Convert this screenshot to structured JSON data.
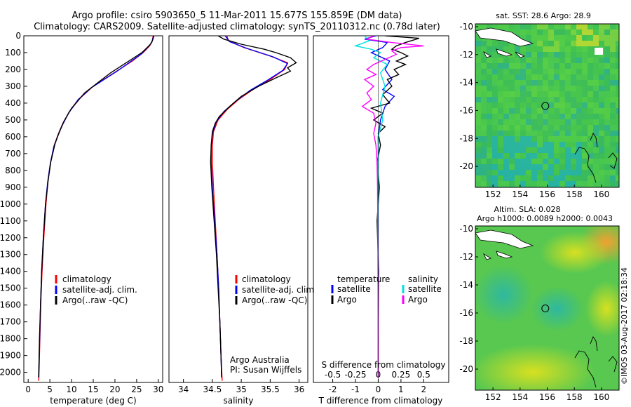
{
  "title": {
    "line1": "Argo profile: csiro 5903650_5 11-Mar-2011 15.677S 155.859E (DM data)",
    "line2": "Climatology: CARS2009. Satellite-adjusted climatology: synTS_20110312.nc (0.78d later)"
  },
  "colors": {
    "clim": "#ff0000",
    "sat": "#0000ff",
    "argo": "#000000",
    "sat_s": "#00e0e0",
    "argo_s": "#ff00ff"
  },
  "chart_data": [
    {
      "type": "line",
      "id": "temperature",
      "xlabel": "temperature (deg C)",
      "ylabel": "",
      "xlim": [
        -1,
        31
      ],
      "ylim": [
        2060,
        0
      ],
      "xticks": [
        0,
        5,
        10,
        15,
        20,
        25,
        30
      ],
      "yticks": [
        0,
        100,
        200,
        300,
        400,
        500,
        600,
        700,
        800,
        900,
        1000,
        1100,
        1200,
        1300,
        1400,
        1500,
        1600,
        1700,
        1800,
        1900,
        2000
      ],
      "legend": [
        "climatology",
        "satellite-adj. clim.",
        "Argo(..raw -QC)"
      ],
      "series": [
        {
          "name": "climatology",
          "color": "clim",
          "points": [
            [
              28.8,
              0
            ],
            [
              28.6,
              30
            ],
            [
              28,
              60
            ],
            [
              26.5,
              100
            ],
            [
              24,
              150
            ],
            [
              21,
              200
            ],
            [
              18,
              250
            ],
            [
              15,
              300
            ],
            [
              12,
              370
            ],
            [
              9.5,
              450
            ],
            [
              8,
              520
            ],
            [
              7,
              580
            ],
            [
              6,
              650
            ],
            [
              5.2,
              750
            ],
            [
              4.6,
              850
            ],
            [
              4.1,
              1000
            ],
            [
              3.6,
              1200
            ],
            [
              3.2,
              1400
            ],
            [
              2.9,
              1600
            ],
            [
              2.7,
              1800
            ],
            [
              2.5,
              2000
            ],
            [
              2.45,
              2050
            ]
          ]
        },
        {
          "name": "satellite-adj. clim.",
          "color": "sat",
          "points": [
            [
              28.9,
              0
            ],
            [
              28.5,
              40
            ],
            [
              27.5,
              70
            ],
            [
              26,
              110
            ],
            [
              23.5,
              155
            ],
            [
              20.5,
              210
            ],
            [
              17.5,
              260
            ],
            [
              14.5,
              310
            ],
            [
              11.5,
              380
            ],
            [
              9.3,
              460
            ],
            [
              7.9,
              530
            ],
            [
              6.9,
              590
            ],
            [
              5.9,
              660
            ],
            [
              5.1,
              760
            ],
            [
              4.5,
              870
            ],
            [
              4,
              1000
            ],
            [
              3.5,
              1200
            ],
            [
              3.1,
              1400
            ],
            [
              2.85,
              1600
            ],
            [
              2.65,
              1800
            ],
            [
              2.45,
              2000
            ],
            [
              2.4,
              2030
            ]
          ]
        },
        {
          "name": "Argo(..raw -QC)",
          "color": "argo",
          "points": [
            [
              29,
              0
            ],
            [
              28.7,
              25
            ],
            [
              28.2,
              50
            ],
            [
              27,
              80
            ],
            [
              26.2,
              100
            ],
            [
              25,
              120
            ],
            [
              22,
              170
            ],
            [
              19,
              220
            ],
            [
              16,
              280
            ],
            [
              13,
              340
            ],
            [
              10,
              430
            ],
            [
              8.2,
              510
            ],
            [
              7.2,
              570
            ],
            [
              6.2,
              640
            ],
            [
              5.2,
              750
            ],
            [
              4.6,
              860
            ],
            [
              4,
              1000
            ],
            [
              3.5,
              1200
            ],
            [
              3.1,
              1400
            ],
            [
              2.85,
              1600
            ],
            [
              2.6,
              1800
            ],
            [
              2.45,
              2000
            ],
            [
              2.4,
              2030
            ]
          ]
        }
      ]
    },
    {
      "type": "line",
      "id": "salinity",
      "xlabel": "salinity",
      "ylabel": "",
      "xlim": [
        33.75,
        36.15
      ],
      "ylim": [
        2060,
        0
      ],
      "xticks": [
        34,
        34.5,
        35,
        35.5,
        36
      ],
      "legend": [
        "climatology",
        "satellite-adj. clim.",
        "Argo(..raw -QC)"
      ],
      "annotations": [
        "Argo Australia",
        "PI: Susan Wijffels"
      ],
      "series": [
        {
          "name": "climatology",
          "color": "clim",
          "points": [
            [
              34.75,
              0
            ],
            [
              34.78,
              30
            ],
            [
              35.05,
              70
            ],
            [
              35.5,
              120
            ],
            [
              35.8,
              160
            ],
            [
              35.75,
              200
            ],
            [
              35.5,
              260
            ],
            [
              35.2,
              320
            ],
            [
              34.95,
              380
            ],
            [
              34.75,
              440
            ],
            [
              34.6,
              500
            ],
            [
              34.52,
              570
            ],
            [
              34.5,
              650
            ],
            [
              34.5,
              750
            ],
            [
              34.52,
              900
            ],
            [
              34.55,
              1100
            ],
            [
              34.58,
              1300
            ],
            [
              34.61,
              1500
            ],
            [
              34.63,
              1700
            ],
            [
              34.65,
              1900
            ],
            [
              34.67,
              2050
            ]
          ]
        },
        {
          "name": "satellite-adj. clim.",
          "color": "sat",
          "points": [
            [
              34.72,
              0
            ],
            [
              34.8,
              35
            ],
            [
              35.1,
              75
            ],
            [
              35.55,
              125
            ],
            [
              35.8,
              165
            ],
            [
              35.72,
              205
            ],
            [
              35.45,
              265
            ],
            [
              35.15,
              325
            ],
            [
              34.9,
              390
            ],
            [
              34.7,
              450
            ],
            [
              34.57,
              510
            ],
            [
              34.5,
              580
            ],
            [
              34.48,
              660
            ],
            [
              34.48,
              760
            ],
            [
              34.5,
              900
            ],
            [
              34.54,
              1100
            ],
            [
              34.58,
              1300
            ],
            [
              34.61,
              1500
            ],
            [
              34.63,
              1700
            ],
            [
              34.65,
              1900
            ],
            [
              34.66,
              2030
            ]
          ]
        },
        {
          "name": "Argo(..raw -QC)",
          "color": "argo",
          "points": [
            [
              34.6,
              0
            ],
            [
              34.7,
              20
            ],
            [
              35.0,
              50
            ],
            [
              35.4,
              80
            ],
            [
              35.6,
              100
            ],
            [
              35.85,
              130
            ],
            [
              35.95,
              160
            ],
            [
              35.8,
              190
            ],
            [
              35.85,
              210
            ],
            [
              35.6,
              250
            ],
            [
              35.3,
              300
            ],
            [
              35.0,
              360
            ],
            [
              34.8,
              420
            ],
            [
              34.62,
              480
            ],
            [
              34.55,
              520
            ],
            [
              34.5,
              570
            ],
            [
              34.48,
              650
            ],
            [
              34.47,
              750
            ],
            [
              34.49,
              900
            ],
            [
              34.53,
              1100
            ],
            [
              34.57,
              1300
            ],
            [
              34.6,
              1500
            ],
            [
              34.63,
              1700
            ],
            [
              34.65,
              1900
            ],
            [
              34.66,
              2030
            ]
          ]
        }
      ]
    },
    {
      "type": "line",
      "id": "difference",
      "xlabel": "T difference from climatology",
      "xlabel_top": "S difference from climatology",
      "xlim": [
        -2.85,
        3.1
      ],
      "ylim": [
        2060,
        0
      ],
      "xticks": [
        -2,
        -1,
        0,
        1,
        2
      ],
      "xticks_top": [
        {
          "pos": -2,
          "label": "-0.5"
        },
        {
          "pos": -1,
          "label": "-0.25"
        },
        {
          "pos": 0,
          "label": "0"
        },
        {
          "pos": 1,
          "label": "0.25"
        },
        {
          "pos": 2,
          "label": "0.5"
        }
      ],
      "legend_left_title": "temperature",
      "legend_right_title": "salinity",
      "legend_left": [
        "satellite",
        "Argo"
      ],
      "legend_right": [
        "satellite",
        "Argo"
      ],
      "series": [
        {
          "name": "T satellite",
          "color": "sat",
          "points": [
            [
              -0.1,
              0
            ],
            [
              -0.6,
              20
            ],
            [
              0.4,
              40
            ],
            [
              0.2,
              70
            ],
            [
              -0.3,
              100
            ],
            [
              0.5,
              150
            ],
            [
              0.3,
              200
            ],
            [
              0.6,
              260
            ],
            [
              0.2,
              320
            ],
            [
              0.7,
              360
            ],
            [
              0.3,
              420
            ],
            [
              0.1,
              500
            ],
            [
              0,
              600
            ],
            [
              0,
              800
            ],
            [
              0,
              1000
            ],
            [
              0,
              1400
            ],
            [
              0,
              1800
            ],
            [
              0,
              2030
            ]
          ]
        },
        {
          "name": "T Argo",
          "color": "argo",
          "points": [
            [
              0.3,
              0
            ],
            [
              1.8,
              15
            ],
            [
              1.2,
              40
            ],
            [
              0.8,
              60
            ],
            [
              0.6,
              80
            ],
            [
              1.0,
              100
            ],
            [
              1.3,
              120
            ],
            [
              0.8,
              150
            ],
            [
              1.2,
              170
            ],
            [
              0.7,
              200
            ],
            [
              0.9,
              230
            ],
            [
              0.4,
              260
            ],
            [
              0.6,
              300
            ],
            [
              0.2,
              350
            ],
            [
              0.5,
              400
            ],
            [
              -0.3,
              430
            ],
            [
              0.2,
              460
            ],
            [
              -0.2,
              500
            ],
            [
              0.3,
              540
            ],
            [
              0,
              580
            ],
            [
              0.1,
              650
            ],
            [
              -0.05,
              750
            ],
            [
              0.05,
              900
            ],
            [
              -0.05,
              1100
            ],
            [
              0.02,
              1400
            ],
            [
              0,
              1700
            ],
            [
              0,
              2030
            ]
          ]
        },
        {
          "name": "S satellite",
          "color": "sat_s",
          "points": [
            [
              -0.6,
              0
            ],
            [
              -0.4,
              30
            ],
            [
              -1,
              60
            ],
            [
              -0.3,
              80
            ],
            [
              0.1,
              100
            ],
            [
              -0.2,
              130
            ],
            [
              0.4,
              170
            ],
            [
              0.1,
              220
            ],
            [
              0.3,
              300
            ],
            [
              0.1,
              400
            ],
            [
              0.2,
              500
            ],
            [
              0,
              600
            ],
            [
              0,
              800
            ],
            [
              0,
              1200
            ],
            [
              0,
              1600
            ],
            [
              0,
              2030
            ]
          ]
        },
        {
          "name": "S Argo",
          "color": "argo_s",
          "points": [
            [
              -0.2,
              0
            ],
            [
              -0.5,
              20
            ],
            [
              0.6,
              40
            ],
            [
              2.0,
              60
            ],
            [
              1.0,
              70
            ],
            [
              0.6,
              90
            ],
            [
              0.8,
              110
            ],
            [
              0.3,
              140
            ],
            [
              -0.2,
              170
            ],
            [
              -0.5,
              200
            ],
            [
              -0.1,
              230
            ],
            [
              -0.6,
              260
            ],
            [
              -0.2,
              300
            ],
            [
              -0.5,
              340
            ],
            [
              -0.3,
              380
            ],
            [
              -0.7,
              420
            ],
            [
              -0.2,
              460
            ],
            [
              -0.1,
              520
            ],
            [
              -0.2,
              580
            ],
            [
              -0.1,
              650
            ],
            [
              -0.05,
              750
            ],
            [
              -0.03,
              900
            ],
            [
              -0.02,
              1100
            ],
            [
              -0.01,
              1400
            ],
            [
              0,
              1800
            ],
            [
              0,
              2030
            ]
          ]
        }
      ]
    },
    {
      "type": "heatmap",
      "id": "sst_map",
      "title": "sat. SST: 28.6 Argo: 28.9",
      "xlim": [
        150.7,
        161.3
      ],
      "ylim": [
        -21.5,
        -9.8
      ],
      "xticks": [
        152,
        154,
        156,
        158,
        160
      ],
      "yticks": [
        -10,
        -12,
        -14,
        -16,
        -18,
        -20
      ],
      "marker": {
        "lon": 155.859,
        "lat": -15.677
      }
    },
    {
      "type": "heatmap",
      "id": "sla_map",
      "title": "Altim. SLA: 0.028",
      "subtitle": "Argo h1000: 0.0089 h2000: 0.0043",
      "xlim": [
        150.7,
        161.3
      ],
      "ylim": [
        -21.5,
        -9.8
      ],
      "xticks": [
        152,
        154,
        156,
        158,
        160
      ],
      "yticks": [
        -10,
        -12,
        -14,
        -16,
        -18,
        -20
      ],
      "marker": {
        "lon": 155.859,
        "lat": -15.677
      }
    }
  ],
  "footer": "©IMOS 03-Aug-2017 02:18:34"
}
